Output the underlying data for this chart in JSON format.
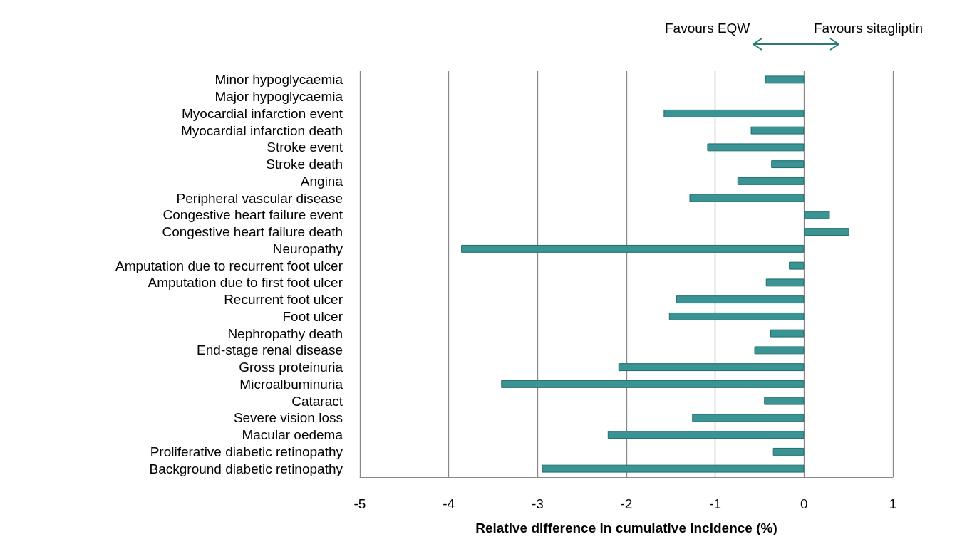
{
  "chart_data": {
    "type": "bar",
    "orientation": "horizontal",
    "xlabel": "Relative difference in cumulative incidence (%)",
    "categories": [
      "Minor hypoglycaemia",
      "Major hypoglycaemia",
      "Myocardial infarction event",
      "Myocardial infarction death",
      "Stroke event",
      "Stroke death",
      "Angina",
      "Peripheral vascular disease",
      "Congestive heart failure event",
      "Congestive heart failure death",
      "Neuropathy",
      "Amputation due to recurrent foot ulcer",
      "Amputation due to first foot ulcer",
      "Recurrent foot ulcer",
      "Foot ulcer",
      "Nephropathy death",
      "End-stage renal disease",
      "Gross proteinuria",
      "Microalbuminuria",
      "Cataract",
      "Severe vision loss",
      "Macular oedema",
      "Proliferative diabetic retinopathy",
      "Background diabetic retinopathy"
    ],
    "values": [
      -0.44,
      null,
      -1.58,
      -0.6,
      -1.09,
      -0.37,
      -0.75,
      -1.29,
      0.29,
      0.51,
      -3.86,
      -0.17,
      -0.43,
      -1.44,
      -1.52,
      -0.38,
      -0.56,
      -2.09,
      -3.41,
      -0.45,
      -1.26,
      -2.21,
      -0.35,
      -2.95
    ],
    "color": "#3a9494",
    "xlim": [
      -5,
      1
    ],
    "xticks": [
      -5,
      -4,
      -3,
      -2,
      -1,
      0,
      1
    ],
    "grid": "x",
    "annotations": [
      "Favours EQW",
      "Favours sitagliptin"
    ]
  }
}
